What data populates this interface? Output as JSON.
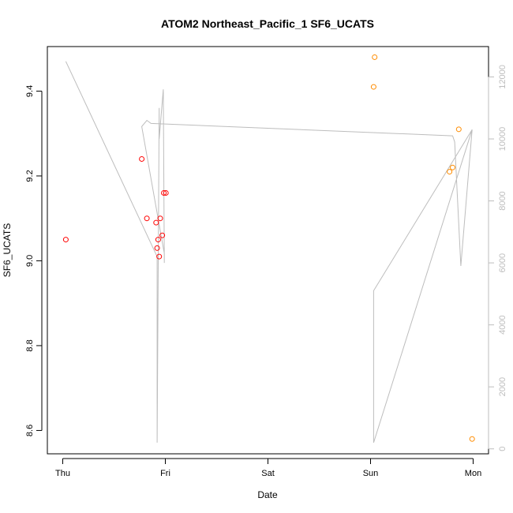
{
  "chart_data": {
    "type": "scatter",
    "title": "ATOM2 Northeast_Pacific_1 SF6_UCATS",
    "xlabel": "Date",
    "ylabel": "SF6_UCATS",
    "x_tick_labels": [
      "Thu",
      "Fri",
      "Sat",
      "Sun",
      "Mon"
    ],
    "x_ticks_days": [
      0,
      1,
      2,
      3,
      4
    ],
    "xlim_days": [
      -0.15,
      4.15
    ],
    "y_ticks": [
      8.6,
      8.8,
      9.0,
      9.2,
      9.4
    ],
    "y_tick_labels": [
      "8.6",
      "8.8",
      "9.0",
      "9.2",
      "9.4"
    ],
    "ylim": [
      8.545,
      9.505
    ],
    "y2_ticks": [
      0,
      2000,
      4000,
      6000,
      8000,
      10000,
      12000
    ],
    "y2_tick_labels": [
      "0",
      "2000",
      "4000",
      "6000",
      "8000",
      "10000",
      "12000"
    ],
    "y2lim": [
      -160,
      12980
    ],
    "grid": false,
    "points": [
      {
        "x": 0.03,
        "y": 9.05,
        "color": "#ff0000"
      },
      {
        "x": 0.77,
        "y": 9.24,
        "color": "#ff0000"
      },
      {
        "x": 0.82,
        "y": 9.1,
        "color": "#ff0000"
      },
      {
        "x": 0.91,
        "y": 9.09,
        "color": "#ff0000"
      },
      {
        "x": 0.92,
        "y": 9.03,
        "color": "#ff0000"
      },
      {
        "x": 0.93,
        "y": 9.05,
        "color": "#ff0000"
      },
      {
        "x": 0.94,
        "y": 9.01,
        "color": "#ff0000"
      },
      {
        "x": 0.95,
        "y": 9.1,
        "color": "#ff0000"
      },
      {
        "x": 0.97,
        "y": 9.06,
        "color": "#ff0000"
      },
      {
        "x": 0.985,
        "y": 9.16,
        "color": "#ff0000"
      },
      {
        "x": 1.005,
        "y": 9.16,
        "color": "#ff0000"
      },
      {
        "x": 3.03,
        "y": 9.41,
        "color": "#ff8c00"
      },
      {
        "x": 3.04,
        "y": 9.48,
        "color": "#ff8c00"
      },
      {
        "x": 3.77,
        "y": 9.21,
        "color": "#ff8c00"
      },
      {
        "x": 3.8,
        "y": 9.22,
        "color": "#ff8c00"
      },
      {
        "x": 3.86,
        "y": 9.31,
        "color": "#ff8c00"
      },
      {
        "x": 3.99,
        "y": 8.58,
        "color": "#ff8c00"
      }
    ],
    "altitude_series": {
      "color": "#bdbdbd",
      "points": [
        [
          0.03,
          12500
        ],
        [
          0.92,
          6200
        ],
        [
          0.92,
          200
        ],
        [
          0.94,
          11000
        ],
        [
          0.94,
          10000
        ],
        [
          0.98,
          11600
        ],
        [
          0.99,
          6000
        ],
        [
          0.99,
          6300
        ],
        [
          0.77,
          10400
        ],
        [
          0.82,
          10600
        ],
        [
          0.86,
          10500
        ],
        [
          3.8,
          10100
        ],
        [
          3.82,
          9900
        ],
        [
          3.88,
          5900
        ],
        [
          3.99,
          10300
        ],
        [
          3.99,
          10300
        ],
        [
          3.03,
          200
        ],
        [
          3.03,
          5100
        ],
        [
          3.99,
          10300
        ]
      ]
    }
  }
}
